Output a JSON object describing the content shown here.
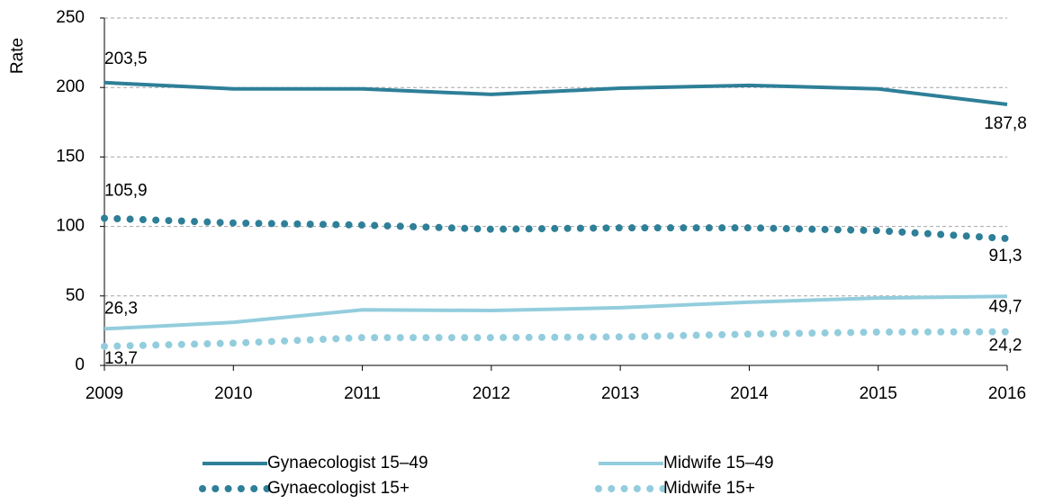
{
  "chart_data": {
    "type": "line",
    "y_label": "Rate",
    "x": [
      2009,
      2010,
      2011,
      2012,
      2013,
      2014,
      2015,
      2016
    ],
    "xlim": [
      2009,
      2016
    ],
    "xticks": [
      2009,
      2010,
      2011,
      2012,
      2013,
      2014,
      2015,
      2016
    ],
    "ylim": [
      0,
      250
    ],
    "yticks": [
      0,
      50,
      100,
      150,
      200,
      250
    ],
    "grid": true,
    "legend": "bottom",
    "series": [
      {
        "name": "Gynaecologist 15–49",
        "color": "#2e7f98",
        "style": "solid",
        "values": [
          203.5,
          199,
          199,
          195,
          199.5,
          201.5,
          199,
          187.8
        ],
        "value_labels": [
          "203,5",
          null,
          null,
          null,
          null,
          null,
          null,
          "187,8"
        ]
      },
      {
        "name": "Midwife 15–49",
        "color": "#93cddd",
        "style": "solid",
        "values": [
          26.3,
          31,
          40,
          39.5,
          41.5,
          45.5,
          48.5,
          49.7
        ],
        "value_labels": [
          "26,3",
          null,
          null,
          null,
          null,
          null,
          null,
          "49,7"
        ]
      },
      {
        "name": "Gynaecologist 15+",
        "color": "#2e7f98",
        "style": "dotted",
        "values": [
          105.9,
          102.5,
          101,
          98,
          99,
          99,
          97,
          91.3
        ],
        "value_labels": [
          "105,9",
          null,
          null,
          null,
          null,
          null,
          null,
          "91,3"
        ]
      },
      {
        "name": "Midwife 15+",
        "color": "#93cddd",
        "style": "dotted",
        "values": [
          13.7,
          16,
          20,
          20,
          20.5,
          22.5,
          24,
          24.2
        ],
        "value_labels": [
          "13,7",
          null,
          null,
          null,
          null,
          null,
          null,
          "24,2"
        ]
      }
    ]
  }
}
